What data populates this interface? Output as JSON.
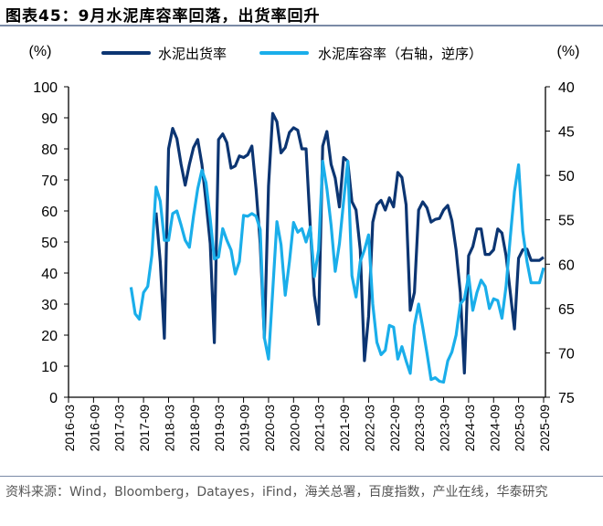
{
  "title": "图表45：9月水泥库容率回落，出货率回升",
  "source": "资料来源：Wind，Bloomberg，Datayes，iFind，海关总署，百度指数，产业在线，华泰研究",
  "chart_data": {
    "type": "line",
    "title": "",
    "left_axis": {
      "label": "(%)",
      "ylim": [
        0,
        100
      ],
      "ticks": [
        0,
        10,
        20,
        30,
        40,
        50,
        60,
        70,
        80,
        90,
        100
      ]
    },
    "right_axis": {
      "label": "(%)",
      "ylim": [
        40,
        75
      ],
      "inverted": true,
      "ticks": [
        40,
        45,
        50,
        55,
        60,
        65,
        70,
        75
      ]
    },
    "x_ticks": [
      "2016-03",
      "2016-09",
      "2017-03",
      "2017-09",
      "2018-03",
      "2018-09",
      "2019-03",
      "2019-09",
      "2020-03",
      "2020-09",
      "2021-03",
      "2021-09",
      "2022-03",
      "2022-09",
      "2023-03",
      "2023-09",
      "2024-03",
      "2024-09",
      "2025-03",
      "2025-09"
    ],
    "x_ticks_rotation": -90,
    "grid": false,
    "legend": "top",
    "series": [
      {
        "name": "水泥出货率",
        "axis": "left",
        "color": "#0c3572",
        "start": "2017-12",
        "frequency": "monthly",
        "values": [
          59.5,
          43.6,
          19,
          80,
          86.6,
          83.3,
          75,
          68.3,
          75,
          80.4,
          83,
          75,
          63,
          49.5,
          17.6,
          83,
          84.8,
          82,
          73.8,
          74.5,
          77.7,
          77.2,
          78.1,
          80.9,
          67,
          49.5,
          19,
          68,
          91.4,
          88.7,
          78.7,
          80.4,
          85.3,
          86.8,
          86,
          80,
          80,
          55,
          32.8,
          23.5,
          80.9,
          85.6,
          75,
          70.6,
          61.3,
          77.2,
          76,
          63,
          60.3,
          47.5,
          11.8,
          26,
          56.4,
          62,
          63.4,
          60.3,
          64.2,
          61.3,
          72.4,
          70.8,
          62,
          28,
          33.8,
          60.3,
          62.9,
          61,
          56.4,
          57.3,
          57.6,
          60.3,
          61.8,
          56.9,
          47.5,
          33.8,
          7.8,
          45.6,
          48.5,
          54.2,
          54.2,
          46,
          46,
          47.5,
          54.2,
          52.9,
          45.6,
          33.8,
          22,
          44.8,
          47.5,
          47.7,
          44.1,
          44.1,
          44.1,
          45.1
        ]
      },
      {
        "name": "水泥库容率（右轴，逆序）",
        "axis": "right",
        "color": "#1aaeea",
        "start": "2017-06",
        "frequency": "monthly",
        "values": [
          62.6,
          65.6,
          66.2,
          63.2,
          62.5,
          59,
          51.3,
          52.9,
          57.3,
          57.3,
          54.3,
          54,
          55.6,
          57.3,
          58.1,
          54.6,
          51.5,
          49.4,
          50.8,
          54.9,
          59.4,
          59.2,
          56,
          57.3,
          58.4,
          61.1,
          59.7,
          54.5,
          54.6,
          54.3,
          54.6,
          56.1,
          68.3,
          70.7,
          63,
          55.2,
          57.8,
          63.5,
          59.7,
          55.3,
          56.4,
          56,
          57.5,
          55.8,
          61.4,
          58.4,
          48.4,
          51.5,
          55.6,
          60.8,
          57.7,
          52.9,
          48.4,
          61.3,
          63.7,
          59.7,
          58.4,
          56.7,
          64.5,
          68.8,
          70.2,
          69.7,
          66.9,
          67.1,
          70.7,
          69.3,
          70.9,
          72.3,
          66.9,
          64.5,
          67.1,
          70,
          73,
          72.8,
          73.2,
          73.3,
          70.9,
          69.9,
          68,
          64.5,
          63.9,
          61.3,
          65.2,
          63.2,
          61.8,
          62.5,
          65,
          63.9,
          64.1,
          66.1,
          62.5,
          57,
          51.8,
          48.8,
          56.3,
          59.7,
          62.1,
          62.1,
          62.1,
          60.4
        ]
      }
    ]
  }
}
